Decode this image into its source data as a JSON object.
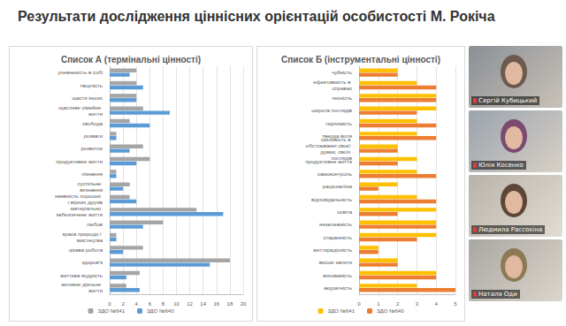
{
  "slide": {
    "title": "Результати дослідження ціннісних орієнтацій особистості М. Рокіча",
    "participants": [
      "Сергій Кубицький",
      "Юлія Косенко",
      "Людмила Рассохіна",
      "Наталя Оди"
    ]
  },
  "chart_data": [
    {
      "type": "bar",
      "title": "Список А (термінальні цінності)",
      "orientation": "horizontal",
      "categories": [
        "упевненість в собі",
        "творчість",
        "щастя інших",
        "щасливе сімейне життя",
        "свобода",
        "розваги",
        "розвиток",
        "продуктивне життя",
        "пізнання",
        "суспільне визнання",
        "наявність хороших і вірних друзів",
        "матеріально забезпечене життя",
        "любов",
        "краса природи і мистецтва",
        "цікава робота",
        "здоров'я",
        "життєва мудрість",
        "активне діяльне життя"
      ],
      "series": [
        {
          "name": "ЗДО №641",
          "color": "#a5a5a5",
          "values": [
            4,
            4,
            4,
            5,
            3,
            1,
            5,
            6,
            1,
            3,
            3,
            13,
            8,
            1,
            5,
            18,
            4.5,
            2.5
          ]
        },
        {
          "name": "ЗДО №640",
          "color": "#5b9bd5",
          "values": [
            3,
            5,
            4,
            9,
            6,
            1,
            3,
            4,
            1,
            2,
            4,
            17,
            5,
            1,
            2,
            15,
            2.5,
            4.5
          ]
        }
      ],
      "xlim": [
        0,
        20
      ],
      "xticks": [
        0,
        2,
        4,
        6,
        8,
        10,
        12,
        14,
        16,
        18,
        20
      ],
      "grid": true,
      "legend": "bottom"
    },
    {
      "type": "bar",
      "title": "Список Б (інструментальні цінності)",
      "orientation": "horizontal",
      "categories": [
        "чуйність",
        "ефективність в справах",
        "чесність",
        "широта поглядів",
        "терпимість",
        "тверда воля",
        "сміливість в обстоюванні своєї думки, своїх поглядів",
        "продуктивне життя",
        "самоконтроль",
        "раціоналізм",
        "відповідальність",
        "освіта",
        "незалежність",
        "старанність",
        "життєрадісність",
        "високі запити",
        "вихованість",
        "акуратність"
      ],
      "series": [
        {
          "name": "ЗДО №641",
          "color": "#ffc000",
          "values": [
            2,
            3,
            4,
            4,
            3,
            3,
            2,
            3,
            3,
            2,
            3,
            4,
            4,
            4,
            1,
            2,
            4,
            3
          ]
        },
        {
          "name": "ЗДО №640",
          "color": "#ed7d31",
          "values": [
            2,
            4,
            4,
            3,
            4,
            4,
            2,
            2,
            4,
            1,
            4,
            2,
            4,
            3,
            1,
            2,
            4,
            5
          ]
        }
      ],
      "xlim": [
        0,
        5
      ],
      "xticks": [
        0,
        1,
        2,
        3,
        4,
        5
      ],
      "grid": true,
      "legend": "bottom"
    }
  ]
}
